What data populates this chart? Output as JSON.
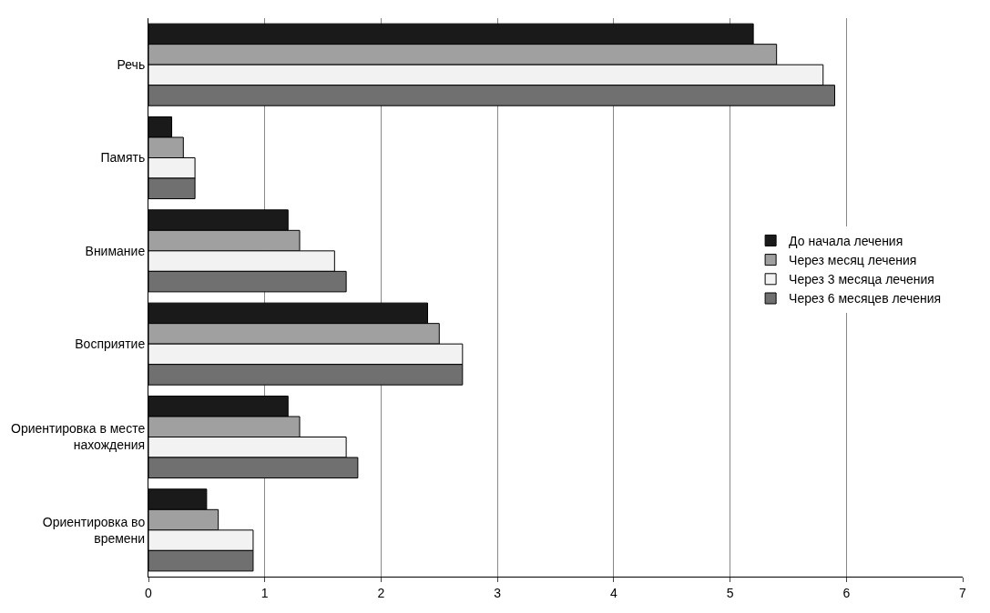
{
  "chart_data": {
    "type": "bar",
    "orientation": "horizontal",
    "categories": [
      "Речь",
      "Память",
      "Внимание",
      "Восприятие",
      "Ориентировка в месте\nнахождения",
      "Ориентировка во\nвремени"
    ],
    "series": [
      {
        "name": "До начала лечения",
        "color": "#1a1a1a",
        "values": [
          5.2,
          0.2,
          1.2,
          2.4,
          1.2,
          0.5
        ]
      },
      {
        "name": "Через месяц лечения",
        "color": "#a0a0a0",
        "values": [
          5.4,
          0.3,
          1.3,
          2.5,
          1.3,
          0.6
        ]
      },
      {
        "name": "Через 3 месяца лечения",
        "color": "#f2f2f2",
        "values": [
          5.8,
          0.4,
          1.6,
          2.7,
          1.7,
          0.9
        ]
      },
      {
        "name": "Через 6 месяцев лечения",
        "color": "#707070",
        "values": [
          5.9,
          0.4,
          1.7,
          2.7,
          1.8,
          0.9
        ]
      }
    ],
    "xlim": [
      0,
      7
    ],
    "xticks": [
      0,
      1,
      2,
      3,
      4,
      5,
      6,
      7
    ],
    "grid": "x",
    "legend": "right"
  }
}
